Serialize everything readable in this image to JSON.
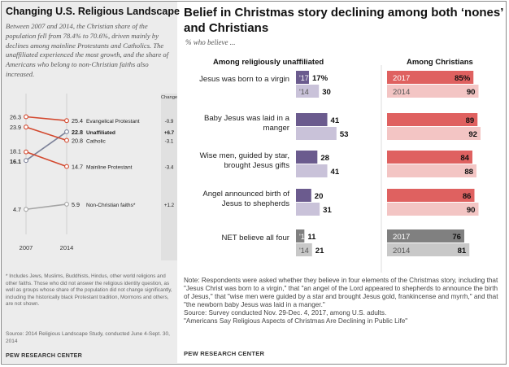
{
  "left_panel": {
    "title": "Changing U.S. Religious Landscape",
    "intro": "Between 2007 and 2014, the Christian share of the population fell from 78.4% to 70.6%, driven mainly by declines among mainline Protestants and Catholics. The unaffiliated experienced the most growth, and the share of Americans who belong to non-Christian faiths also increased.",
    "footnote": "* Includes Jews, Muslims, Buddhists, Hindus, other world religions and other faiths. Those who did not answer the religious identity question, as well as groups whose share of the population did not change significantly, including the historically black Protestant tradition, Mormons and others, are not shown.",
    "source": "Source: 2014 Religious Landscape Study, conducted June 4-Sept. 30, 2014",
    "org": "PEW RESEARCH CENTER"
  },
  "right_panel": {
    "title": "Belief in Christmas story declining among both ‘nones’ and Christians",
    "subtitle": "% who believe ...",
    "note": "Note: Respondents were asked whether they believe in four elements of the Christmas story, including that \"Jesus Christ was born to a virgin,\" that \"an angel of the Lord appeared to shepherds to announce the birth of Jesus,\" that \"wise men were guided by a star and brought Jesus gold, frankincense and myrrh,\" and that \"the newborn baby Jesus was laid in a manger.\"",
    "source": "Source: Survey conducted Nov. 29-Dec. 4, 2017, among U.S. adults.",
    "report": "\"Americans Say Religious Aspects of Christmas Are Declining in Public Life\"",
    "org": "PEW RESEARCH CENTER"
  },
  "chart_data": [
    {
      "type": "line",
      "x": [
        "2007",
        "2014"
      ],
      "change_header": "Change",
      "ylim": [
        0,
        30
      ],
      "series": [
        {
          "name": "Evangelical Protestant",
          "values": [
            26.3,
            25.4
          ],
          "value_labels": [
            "26.3",
            "25.4"
          ],
          "change": "-0.9",
          "color": "#d3492f"
        },
        {
          "name": "Unaffiliated",
          "values": [
            16.1,
            22.8
          ],
          "value_labels": [
            "16.1",
            "22.8"
          ],
          "change": "+6.7",
          "color": "#7d8299"
        },
        {
          "name": "Catholic",
          "values": [
            23.9,
            20.8
          ],
          "value_labels": [
            "23.9",
            "20.8"
          ],
          "change": "-3.1",
          "color": "#d3492f"
        },
        {
          "name": "Mainline Protestant",
          "values": [
            18.1,
            14.7
          ],
          "value_labels": [
            "18.1",
            "14.7"
          ],
          "change": "-3.4",
          "color": "#d3492f"
        },
        {
          "name": "Non-Christian faiths*",
          "values": [
            4.7,
            5.9
          ],
          "value_labels": [
            "4.7",
            "5.9"
          ],
          "change": "+1.2",
          "color": "#a5a5a5"
        }
      ]
    },
    {
      "type": "bar",
      "xlim": [
        0,
        100
      ],
      "groups": [
        "Among religiously unaffiliated",
        "Among Christians"
      ],
      "series_labels": {
        "unaffiliated": [
          "'17",
          "'14"
        ],
        "christians": [
          "2017",
          "2014"
        ]
      },
      "categories": [
        {
          "label": "Jesus was born to a virgin",
          "unaffiliated": [
            17,
            30
          ],
          "christians": [
            85,
            90
          ],
          "unaffiliated_labels": [
            "17%",
            "30"
          ],
          "christians_labels": [
            "85%",
            "90"
          ]
        },
        {
          "label": "Baby Jesus was laid in a manger",
          "unaffiliated": [
            41,
            53
          ],
          "christians": [
            89,
            92
          ],
          "unaffiliated_labels": [
            "41",
            "53"
          ],
          "christians_labels": [
            "89",
            "92"
          ]
        },
        {
          "label": "Wise men, guided by star, brought Jesus gifts",
          "unaffiliated": [
            28,
            41
          ],
          "christians": [
            84,
            88
          ],
          "unaffiliated_labels": [
            "28",
            "41"
          ],
          "christians_labels": [
            "84",
            "88"
          ]
        },
        {
          "label": "Angel announced birth of Jesus to shepherds",
          "unaffiliated": [
            20,
            31
          ],
          "christians": [
            86,
            90
          ],
          "unaffiliated_labels": [
            "20",
            "31"
          ],
          "christians_labels": [
            "86",
            "90"
          ]
        },
        {
          "label": "NET believe all four",
          "unaffiliated": [
            11,
            21
          ],
          "christians": [
            76,
            81
          ],
          "unaffiliated_labels": [
            "11",
            "21"
          ],
          "christians_labels": [
            "76",
            "81"
          ]
        }
      ],
      "colors": {
        "unaff_2017": "#6b5b8e",
        "unaff_2014": "#c9c2d9",
        "chr_2017": "#df6160",
        "chr_2014": "#f3c5c4",
        "net_2017": "#808080",
        "net_2014": "#c8c8c8"
      }
    }
  ]
}
